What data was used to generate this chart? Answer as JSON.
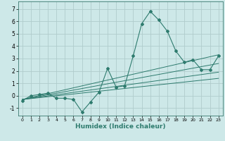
{
  "xlabel": "Humidex (Indice chaleur)",
  "xlim": [
    -0.5,
    23.5
  ],
  "ylim": [
    -1.6,
    7.6
  ],
  "xticks": [
    0,
    1,
    2,
    3,
    4,
    5,
    6,
    7,
    8,
    9,
    10,
    11,
    12,
    13,
    14,
    15,
    16,
    17,
    18,
    19,
    20,
    21,
    22,
    23
  ],
  "yticks": [
    -1,
    0,
    1,
    2,
    3,
    4,
    5,
    6,
    7
  ],
  "bg_color": "#cde8e8",
  "line_color": "#2e7b6e",
  "grid_color": "#b0cccc",
  "series": [
    [
      0,
      -0.4
    ],
    [
      1,
      0.0
    ],
    [
      2,
      0.1
    ],
    [
      3,
      0.2
    ],
    [
      4,
      -0.2
    ],
    [
      5,
      -0.2
    ],
    [
      6,
      -0.3
    ],
    [
      7,
      -1.3
    ],
    [
      8,
      -0.5
    ],
    [
      9,
      0.3
    ],
    [
      10,
      2.2
    ],
    [
      11,
      0.7
    ],
    [
      12,
      0.8
    ],
    [
      13,
      3.2
    ],
    [
      14,
      5.8
    ],
    [
      15,
      6.8
    ],
    [
      16,
      6.1
    ],
    [
      17,
      5.2
    ],
    [
      18,
      3.6
    ],
    [
      19,
      2.7
    ],
    [
      20,
      2.9
    ],
    [
      21,
      2.1
    ],
    [
      22,
      2.1
    ],
    [
      23,
      3.2
    ]
  ],
  "regression_lines": [
    {
      "x": [
        0,
        23
      ],
      "y": [
        -0.3,
        3.3
      ]
    },
    {
      "x": [
        0,
        23
      ],
      "y": [
        -0.3,
        2.6
      ]
    },
    {
      "x": [
        0,
        23
      ],
      "y": [
        -0.3,
        1.9
      ]
    },
    {
      "x": [
        0,
        23
      ],
      "y": [
        -0.3,
        1.4
      ]
    }
  ]
}
